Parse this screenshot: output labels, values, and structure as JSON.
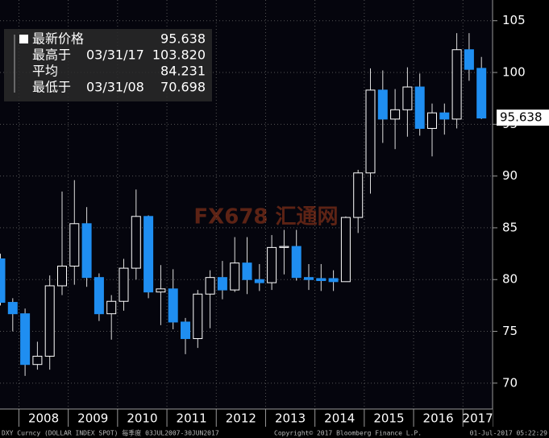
{
  "chart_data": {
    "type": "candlestick",
    "up_color": "#ffffff",
    "down_color": "#1f8ef1",
    "open": [
      82.0,
      77.8,
      76.7,
      71.8,
      72.6,
      79.4,
      81.3,
      85.4,
      80.2,
      76.7,
      77.9,
      81.1,
      86.1,
      78.8,
      79.1,
      75.9,
      74.3,
      78.6,
      80.2,
      79.0,
      81.6,
      80.0,
      79.7,
      83.1,
      83.2,
      80.2,
      80.1,
      80.1,
      79.8,
      86.0,
      90.3,
      98.3,
      95.5,
      96.4,
      98.6,
      94.6,
      96.1,
      95.5,
      102.2,
      100.4
    ],
    "high": [
      82.5,
      78.2,
      77.2,
      74.0,
      80.4,
      88.5,
      89.6,
      87.0,
      80.6,
      78.5,
      82.0,
      88.7,
      86.2,
      81.4,
      81.0,
      76.3,
      79.0,
      80.9,
      81.8,
      84.1,
      84.1,
      81.5,
      84.3,
      84.8,
      84.8,
      81.5,
      81.5,
      80.9,
      86.1,
      90.6,
      100.4,
      100.2,
      98.4,
      100.5,
      99.9,
      97.0,
      97.0,
      103.8,
      103.8,
      101.5
    ],
    "low": [
      77.5,
      75.0,
      70.7,
      71.3,
      71.3,
      78.5,
      79.5,
      79.3,
      76.0,
      74.2,
      77.0,
      80.0,
      78.2,
      75.6,
      75.2,
      72.8,
      73.4,
      75.3,
      78.1,
      78.8,
      78.6,
      78.9,
      79.0,
      80.5,
      79.9,
      79.0,
      78.9,
      78.9,
      79.8,
      84.5,
      88.3,
      93.2,
      92.6,
      93.8,
      93.9,
      91.9,
      94.0,
      94.6,
      99.2,
      95.5
    ],
    "close": [
      77.8,
      76.7,
      71.8,
      72.6,
      79.4,
      81.3,
      85.4,
      80.2,
      76.7,
      77.9,
      81.1,
      86.1,
      78.8,
      79.1,
      75.9,
      74.3,
      78.6,
      80.2,
      79.0,
      81.6,
      80.0,
      79.7,
      83.1,
      83.2,
      80.2,
      80.0,
      79.9,
      79.8,
      86.0,
      90.3,
      98.3,
      95.5,
      96.4,
      98.6,
      94.6,
      96.1,
      95.5,
      102.2,
      100.3,
      95.6
    ],
    "years": [
      "2008",
      "2009",
      "2010",
      "2011",
      "2012",
      "2013",
      "2014",
      "2015",
      "2016",
      "2017"
    ],
    "ylim": [
      67.5,
      107
    ],
    "yticks": [
      70,
      75,
      80,
      85,
      90,
      95,
      100,
      105
    ],
    "grid": true,
    "stats": [
      {
        "label": "最新价格",
        "value": 95.638
      },
      {
        "label": "最高于",
        "date": "03/31/17",
        "value": 103.82,
        "value_label": "103.820"
      },
      {
        "label": "平均",
        "value": 84.231
      },
      {
        "label": "最低于",
        "date": "03/31/08",
        "value": 70.698
      }
    ],
    "watermark": "FX678 汇通网",
    "footer_left": "DXY Curncy (DOLLAR INDEX SPOT)  每季度 03JUL2007-30JUN2017",
    "footer_mid": "Copyright© 2017 Bloomberg Finance L.P.",
    "footer_right": "01-Jul-2017 05:22:29"
  }
}
